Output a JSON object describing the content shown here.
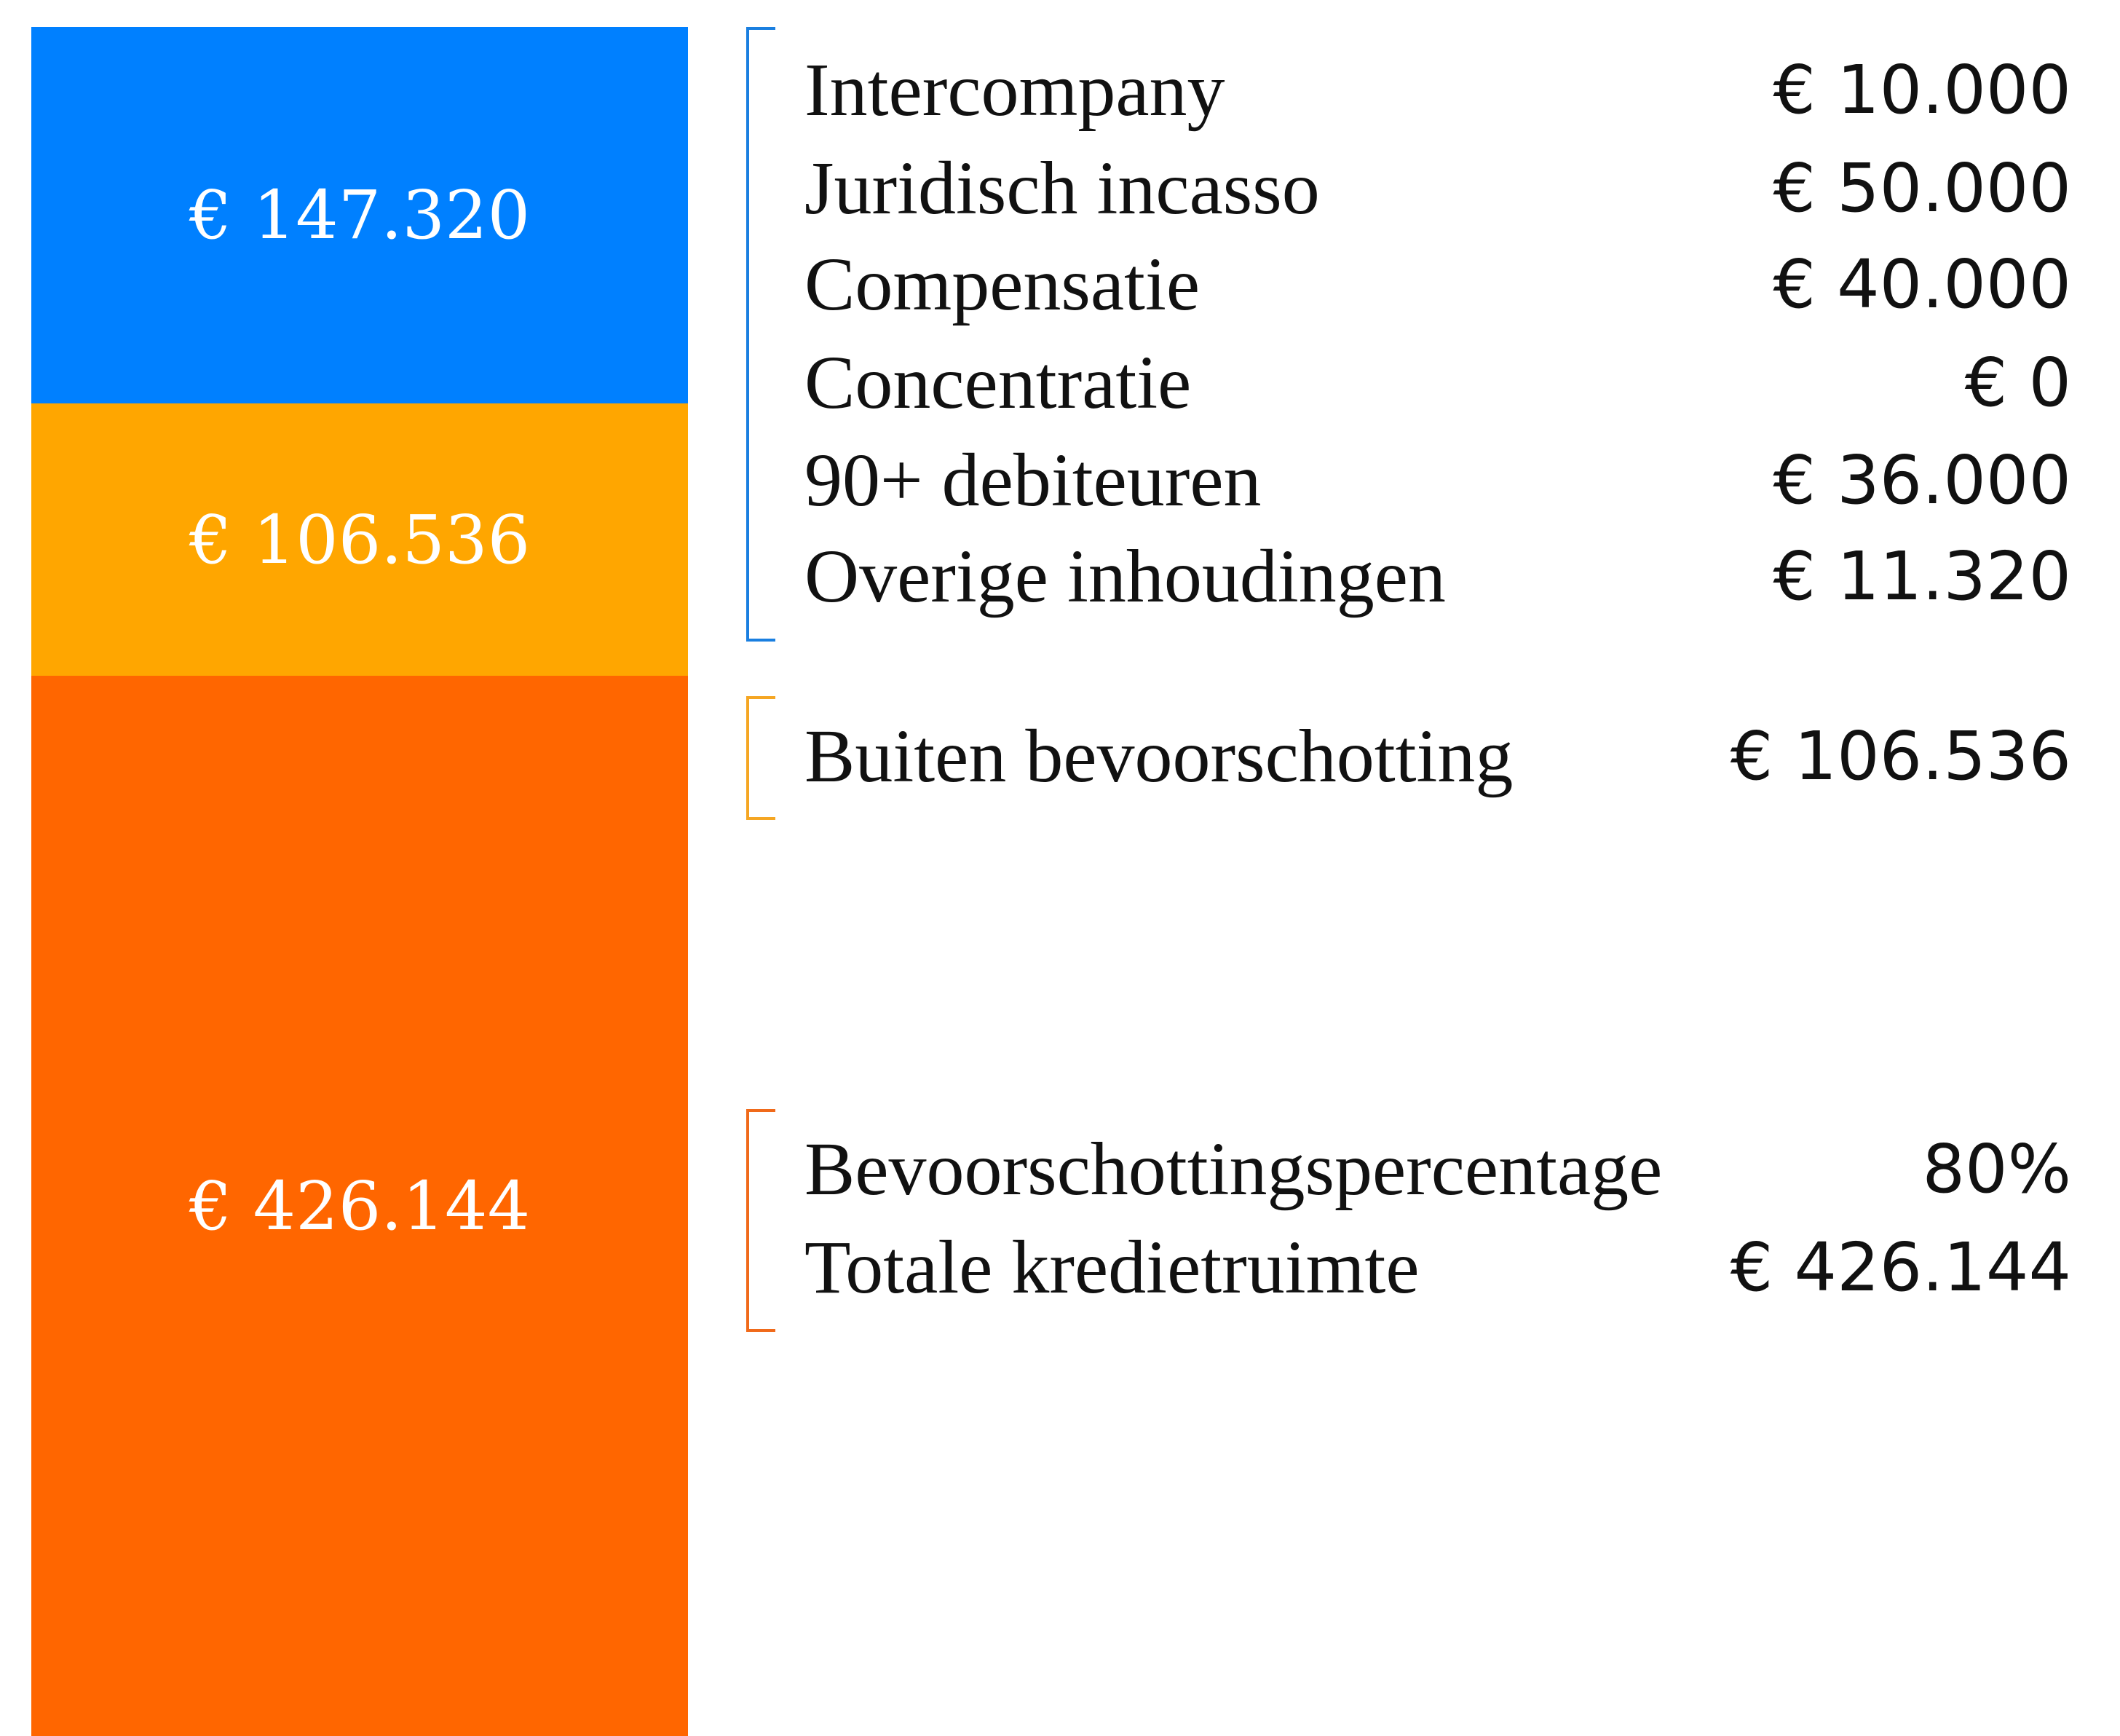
{
  "bar": {
    "segments": [
      {
        "label": "€ 147.320"
      },
      {
        "label": "€ 106.536"
      },
      {
        "label": "€ 426.144"
      }
    ]
  },
  "groups": [
    {
      "rows": [
        {
          "label": "Intercompany",
          "value": "€ 10.000"
        },
        {
          "label": "Juridisch incasso",
          "value": "€ 50.000"
        },
        {
          "label": "Compensatie",
          "value": "€ 40.000"
        },
        {
          "label": "Concentratie",
          "value": "€ 0"
        },
        {
          "label": "90+ debiteuren",
          "value": "€ 36.000"
        },
        {
          "label": "Overige inhoudingen",
          "value": "€ 11.320"
        }
      ]
    },
    {
      "rows": [
        {
          "label": "Buiten bevoorschotting",
          "value": "€ 106.536"
        }
      ]
    },
    {
      "rows": [
        {
          "label": "Bevoorschottingspercentage",
          "value": "80%"
        },
        {
          "label": "Totale kredietruimte",
          "value": "€ 426.144"
        }
      ]
    }
  ]
}
